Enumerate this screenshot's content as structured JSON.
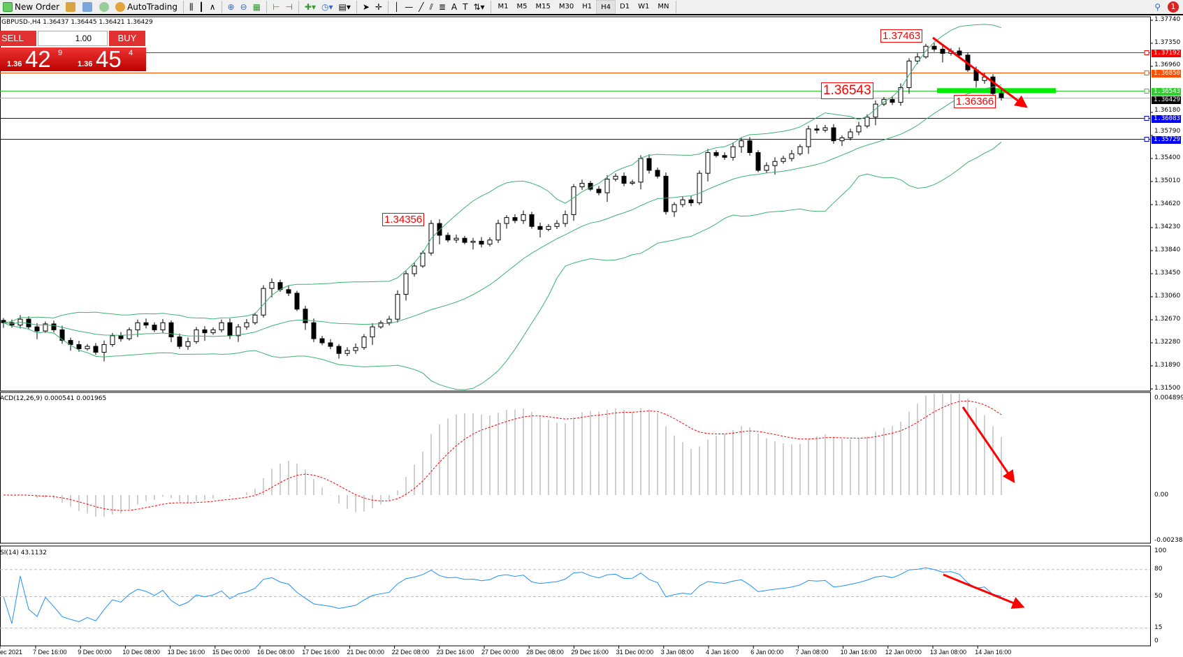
{
  "toolbar": {
    "new_order": "New Order",
    "autotrading": "AutoTrading",
    "timeframes": [
      "M1",
      "M5",
      "M15",
      "M30",
      "H1",
      "H4",
      "D1",
      "W1",
      "MN"
    ],
    "active_timeframe": "H4",
    "text_tool": "A",
    "notification_count": "1"
  },
  "chart_info": "GBPUSD-,H4  1.36437 1.36445 1.36421 1.36429",
  "one_click": {
    "sell": "SELL",
    "buy": "BUY",
    "lot": "1.00",
    "sell_prefix": "1.36",
    "sell_big": "42",
    "sell_sup": "9",
    "buy_prefix": "1.36",
    "buy_big": "45",
    "buy_sup": "4"
  },
  "price_axis": [
    "1.37740",
    "1.37350",
    "1.36960",
    "1.36180",
    "1.35790",
    "1.35400",
    "1.35010",
    "1.34620",
    "1.34230",
    "1.33840",
    "1.33450",
    "1.33060",
    "1.32670",
    "1.32280",
    "1.31890",
    "1.31500"
  ],
  "price_range": [
    1.315,
    1.3774
  ],
  "levels": [
    {
      "price": "1.37192",
      "color": "#ff0000"
    },
    {
      "price": "1.36850",
      "color": "#ff5000"
    },
    {
      "price": "1.36543",
      "color": "#33cc33"
    },
    {
      "price": "1.36429",
      "color": "#000000"
    },
    {
      "price": "1.36083",
      "color": "#0000ff"
    },
    {
      "price": "1.35729",
      "color": "#0000ff"
    }
  ],
  "annotations": {
    "high": "1.37463",
    "level": "1.36543",
    "left": "1.34356",
    "low": "1.36366"
  },
  "macd": {
    "label": "ACD(12,26,9) 0.000541 0.001965",
    "max": "0.004899",
    "zero": "0.00",
    "min": "-0.002382"
  },
  "rsi": {
    "label": "SI(14) 43.1132",
    "levels": [
      "100",
      "80",
      "50",
      "15",
      "0"
    ]
  },
  "time_axis": [
    "ec 2021",
    "7 Dec 16:00",
    "9 Dec 00:00",
    "10 Dec 08:00",
    "13 Dec 16:00",
    "15 Dec 00:00",
    "16 Dec 08:00",
    "17 Dec 16:00",
    "21 Dec 00:00",
    "22 Dec 08:00",
    "23 Dec 16:00",
    "27 Dec 00:00",
    "28 Dec 08:00",
    "29 Dec 16:00",
    "31 Dec 00:00",
    "3 Jan 08:00",
    "4 Jan 16:00",
    "6 Jan 00:00",
    "7 Jan 08:00",
    "10 Jan 16:00",
    "12 Jan 00:00",
    "13 Jan 08:00",
    "14 Jan 16:00"
  ],
  "colors": {
    "bands": "#3cb371",
    "rsi": "#1e90ff",
    "signal": "#ff0000",
    "histogram": "#c0c0c0",
    "arrow": "#ff0000"
  },
  "chart_data": {
    "type": "candlestick",
    "symbol": "GBPUSD-",
    "timeframe": "H4",
    "closes": [
      1.3262,
      1.3258,
      1.3268,
      1.3255,
      1.3248,
      1.326,
      1.325,
      1.3232,
      1.3225,
      1.3218,
      1.3222,
      1.3212,
      1.3225,
      1.324,
      1.3235,
      1.325,
      1.3262,
      1.3258,
      1.325,
      1.3262,
      1.3238,
      1.3222,
      1.323,
      1.325,
      1.3245,
      1.325,
      1.3262,
      1.324,
      1.3255,
      1.3262,
      1.3275,
      1.332,
      1.333,
      1.3318,
      1.3312,
      1.3285,
      1.3262,
      1.3235,
      1.3228,
      1.3222,
      1.321,
      1.3215,
      1.322,
      1.3238,
      1.3255,
      1.3262,
      1.3268,
      1.331,
      1.3345,
      1.3358,
      1.338,
      1.343,
      1.341,
      1.3402,
      1.3405,
      1.3398,
      1.34,
      1.3395,
      1.3402,
      1.343,
      1.344,
      1.3435,
      1.3445,
      1.3425,
      1.342,
      1.3425,
      1.343,
      1.3445,
      1.3492,
      1.3498,
      1.3488,
      1.3482,
      1.3505,
      1.351,
      1.3498,
      1.35,
      1.354,
      1.352,
      1.351,
      1.345,
      1.3462,
      1.347,
      1.3465,
      1.3515,
      1.355,
      1.3545,
      1.3542,
      1.356,
      1.357,
      1.355,
      1.352,
      1.3528,
      1.3535,
      1.354,
      1.3548,
      1.356,
      1.359,
      1.3588,
      1.3592,
      1.357,
      1.3575,
      1.3585,
      1.3595,
      1.361,
      1.3632,
      1.364,
      1.3635,
      1.366,
      1.3705,
      1.3712,
      1.373,
      1.3725,
      1.3718,
      1.3722,
      1.3715,
      1.369,
      1.3672,
      1.3678,
      1.365,
      1.3643
    ]
  }
}
